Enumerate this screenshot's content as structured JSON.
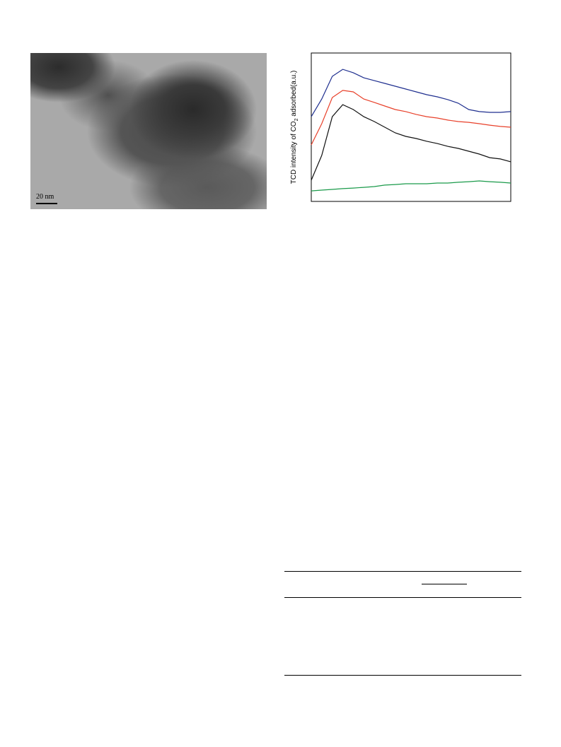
{
  "figure_image": {
    "scale_bar": "20 nm"
  },
  "chart_data": {
    "type": "line",
    "ylabel": [
      "TCD intensity of CO",
      "2",
      " adsorbed(a.u.)"
    ],
    "x": [
      0,
      1,
      2,
      3,
      4,
      5,
      6,
      7,
      8,
      9,
      10,
      11,
      12,
      13,
      14,
      15,
      16,
      17,
      18,
      19
    ],
    "xlim": [
      0,
      19
    ],
    "ylim": [
      0,
      100
    ],
    "series": [
      {
        "color": "#1f2f8f",
        "values": [
          57.1,
          69.0,
          84.3,
          89.0,
          86.7,
          83.3,
          81.4,
          79.5,
          77.6,
          75.7,
          73.8,
          71.9,
          70.5,
          68.6,
          66.2,
          61.9,
          60.5,
          60.0,
          60.0,
          60.5
        ]
      },
      {
        "color": "#e8402a",
        "values": [
          38.1,
          52.4,
          70.0,
          74.8,
          73.8,
          69.0,
          66.7,
          64.3,
          61.9,
          60.5,
          58.6,
          57.1,
          56.2,
          54.8,
          53.8,
          53.3,
          52.4,
          51.4,
          50.5,
          50.0
        ]
      },
      {
        "color": "#111111",
        "values": [
          14.3,
          31.0,
          57.1,
          65.2,
          61.9,
          57.1,
          53.8,
          50.0,
          46.2,
          43.8,
          42.4,
          40.5,
          39.0,
          37.1,
          35.7,
          33.8,
          31.9,
          29.5,
          28.6,
          26.7
        ]
      },
      {
        "color": "#1a9a4a",
        "values": [
          7.1,
          7.6,
          8.1,
          8.6,
          9.0,
          9.5,
          10.0,
          11.0,
          11.4,
          11.9,
          11.9,
          11.9,
          12.4,
          12.4,
          12.9,
          13.3,
          13.8,
          13.3,
          12.9,
          12.4
        ]
      }
    ]
  }
}
